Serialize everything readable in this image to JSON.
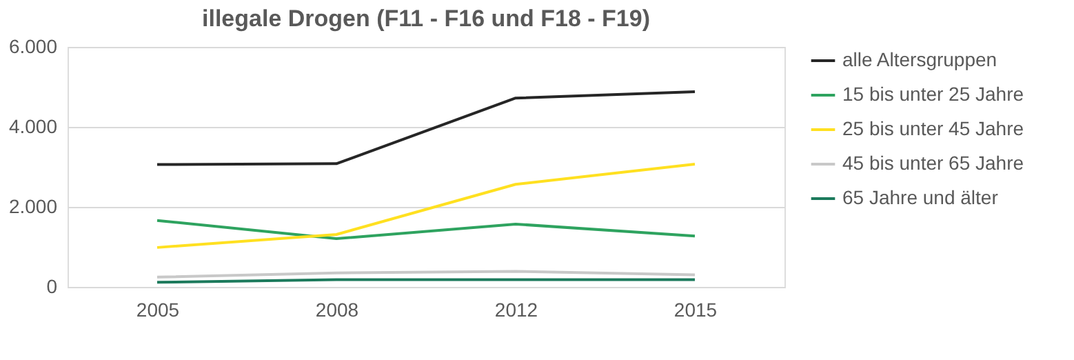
{
  "chart_data": {
    "type": "line",
    "title": "illegale Drogen (F11 - F16 und F18 - F19)",
    "categories": [
      "2005",
      "2008",
      "2012",
      "2015"
    ],
    "series": [
      {
        "name": "alle Altersgruppen",
        "color": "#262626",
        "values": [
          3060,
          3080,
          4720,
          4880
        ]
      },
      {
        "name": "15 bis unter 25 Jahre",
        "color": "#2ea35f",
        "values": [
          1660,
          1205,
          1570,
          1270
        ]
      },
      {
        "name": "25 bis unter 45 Jahre",
        "color": "#ffe020",
        "values": [
          985,
          1310,
          2565,
          3070
        ]
      },
      {
        "name": "45 bis unter 65 Jahre",
        "color": "#c8c8c8",
        "values": [
          245,
          350,
          390,
          300
        ]
      },
      {
        "name": "65 Jahre und älter",
        "color": "#1c7a5c",
        "values": [
          115,
          180,
          180,
          180
        ]
      }
    ],
    "ylim": [
      0,
      6000
    ],
    "yticks": [
      {
        "value": 0,
        "label": "0"
      },
      {
        "value": 2000,
        "label": "2.000"
      },
      {
        "value": 4000,
        "label": "4.000"
      },
      {
        "value": 6000,
        "label": "6.000"
      }
    ],
    "grid": "y",
    "legend": "right",
    "marker": "none",
    "line_style": "solid"
  }
}
